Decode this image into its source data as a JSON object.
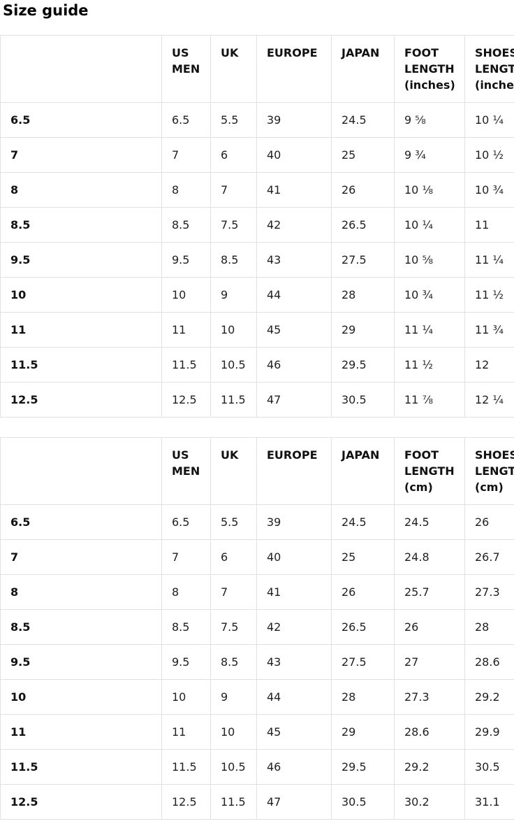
{
  "page": {
    "title": "Size guide"
  },
  "tables": [
    {
      "id": "inches",
      "headers": [
        "",
        "US MEN",
        "UK",
        "EUROPE",
        "JAPAN",
        "FOOT LENGTH (inches)",
        "SHOES LENGTH (inches)"
      ],
      "rows": [
        [
          "6.5",
          "6.5",
          "5.5",
          "39",
          "24.5",
          "9 ⅝",
          "10 ¼"
        ],
        [
          "7",
          "7",
          "6",
          "40",
          "25",
          "9 ¾",
          "10 ½"
        ],
        [
          "8",
          "8",
          "7",
          "41",
          "26",
          "10 ⅛",
          "10 ¾"
        ],
        [
          "8.5",
          "8.5",
          "7.5",
          "42",
          "26.5",
          "10 ¼",
          "11"
        ],
        [
          "9.5",
          "9.5",
          "8.5",
          "43",
          "27.5",
          "10 ⅝",
          "11 ¼"
        ],
        [
          "10",
          "10",
          "9",
          "44",
          "28",
          "10 ¾",
          "11 ½"
        ],
        [
          "11",
          "11",
          "10",
          "45",
          "29",
          "11 ¼",
          "11 ¾"
        ],
        [
          "11.5",
          "11.5",
          "10.5",
          "46",
          "29.5",
          "11 ½",
          "12"
        ],
        [
          "12.5",
          "12.5",
          "11.5",
          "47",
          "30.5",
          "11 ⅞",
          "12 ¼"
        ]
      ]
    },
    {
      "id": "cm",
      "headers": [
        "",
        "US MEN",
        "UK",
        "EUROPE",
        "JAPAN",
        "FOOT LENGTH (cm)",
        "SHOES LENGTH (cm)"
      ],
      "rows": [
        [
          "6.5",
          "6.5",
          "5.5",
          "39",
          "24.5",
          "24.5",
          "26"
        ],
        [
          "7",
          "7",
          "6",
          "40",
          "25",
          "24.8",
          "26.7"
        ],
        [
          "8",
          "8",
          "7",
          "41",
          "26",
          "25.7",
          "27.3"
        ],
        [
          "8.5",
          "8.5",
          "7.5",
          "42",
          "26.5",
          "26",
          "28"
        ],
        [
          "9.5",
          "9.5",
          "8.5",
          "43",
          "27.5",
          "27",
          "28.6"
        ],
        [
          "10",
          "10",
          "9",
          "44",
          "28",
          "27.3",
          "29.2"
        ],
        [
          "11",
          "11",
          "10",
          "45",
          "29",
          "28.6",
          "29.9"
        ],
        [
          "11.5",
          "11.5",
          "10.5",
          "46",
          "29.5",
          "29.2",
          "30.5"
        ],
        [
          "12.5",
          "12.5",
          "11.5",
          "47",
          "30.5",
          "30.2",
          "31.1"
        ]
      ]
    }
  ],
  "colors": {
    "background": "#ffffff",
    "border": "#e1e1e1",
    "text": "#1f1f1f",
    "heading_text": "#000000"
  }
}
